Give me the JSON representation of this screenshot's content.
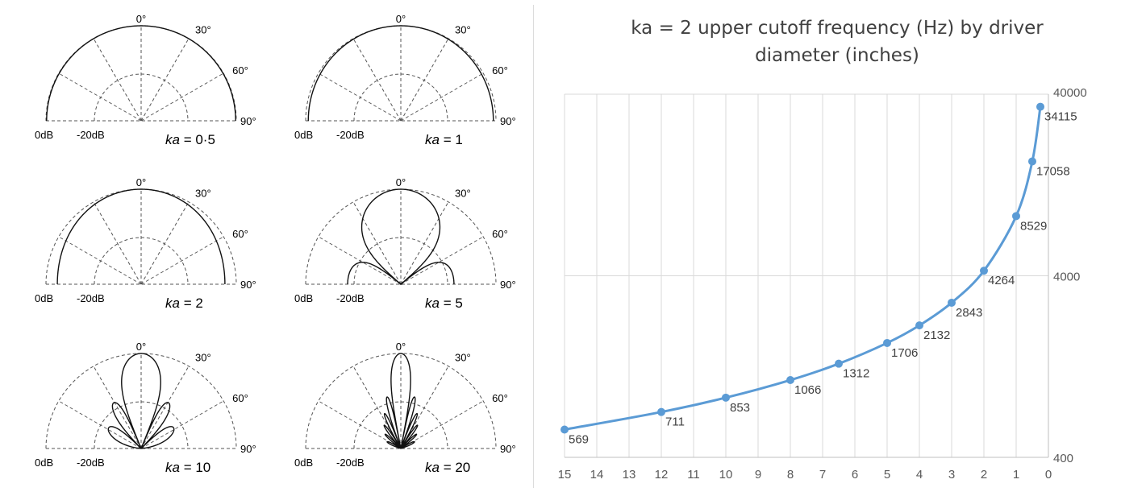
{
  "polar_panel": {
    "plots": [
      {
        "label": "ka = 0·5",
        "ka": 0.5
      },
      {
        "label": "ka = 1",
        "ka": 1
      },
      {
        "label": "ka = 2",
        "ka": 2
      },
      {
        "label": "ka = 5",
        "ka": 5
      },
      {
        "label": "ka = 10",
        "ka": 10
      },
      {
        "label": "ka = 20",
        "ka": 20
      }
    ],
    "angle_labels": [
      "0°",
      "30°",
      "60°",
      "90°"
    ],
    "level_labels": [
      "0dB",
      "-20dB"
    ]
  },
  "chart_data": {
    "type": "line",
    "title": "ka = 2 upper cutoff frequency (Hz) by driver diameter (inches)",
    "subtitle": "",
    "xlabel": "",
    "ylabel": "",
    "x_axis": {
      "min": 0,
      "max": 15,
      "reversed": true,
      "ticks": [
        15,
        14,
        13,
        12,
        11,
        10,
        9,
        8,
        7,
        6,
        5,
        4,
        3,
        2,
        1,
        0
      ]
    },
    "y_axis": {
      "scale": "log",
      "min": 400,
      "max": 40000,
      "ticks": [
        400,
        4000,
        40000
      ],
      "position": "right"
    },
    "grid": {
      "vertical": true,
      "horizontal": true
    },
    "legend": "none",
    "series_color": "#5b9bd5",
    "series": [
      {
        "points": [
          {
            "x": 15,
            "y": 569
          },
          {
            "x": 12,
            "y": 711
          },
          {
            "x": 10,
            "y": 853
          },
          {
            "x": 8,
            "y": 1066
          },
          {
            "x": 6.5,
            "y": 1312
          },
          {
            "x": 5,
            "y": 1706
          },
          {
            "x": 4,
            "y": 2132
          },
          {
            "x": 3,
            "y": 2843
          },
          {
            "x": 2,
            "y": 4264
          },
          {
            "x": 1,
            "y": 8529
          },
          {
            "x": 0.5,
            "y": 17058
          },
          {
            "x": 0.25,
            "y": 34115
          }
        ],
        "labels": [
          "569",
          "711",
          "853",
          "1066",
          "1312",
          "1706",
          "2132",
          "2843",
          "4264",
          "8529",
          "17058",
          "34115"
        ]
      }
    ]
  }
}
